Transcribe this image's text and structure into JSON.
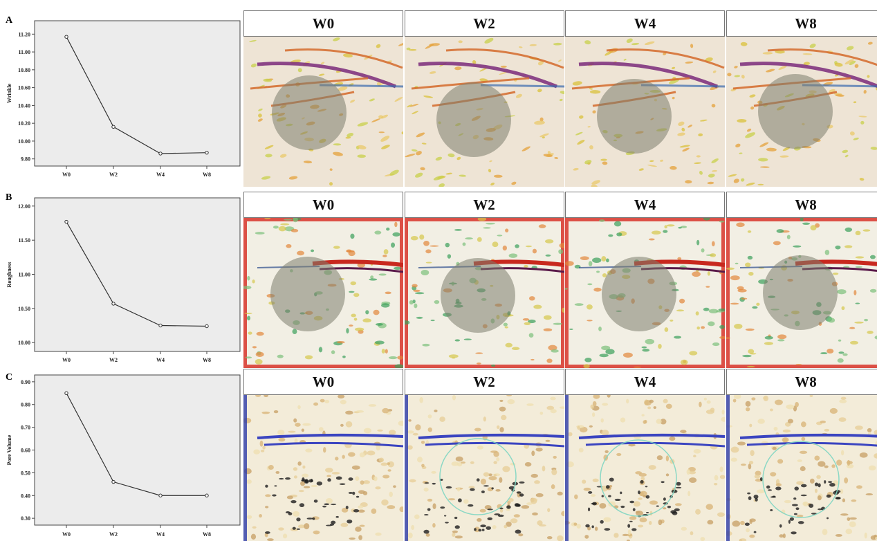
{
  "panels": [
    {
      "letter": "A",
      "chart_ylabel": "Wrinkle",
      "photo_style": "wrinkle",
      "photo_labels": [
        "W0",
        "W2",
        "W4",
        "W8"
      ]
    },
    {
      "letter": "B",
      "chart_ylabel": "Roughness",
      "photo_style": "roughness",
      "photo_labels": [
        "W0",
        "W2",
        "W4",
        "W8"
      ]
    },
    {
      "letter": "C",
      "chart_ylabel": "Pore Volume",
      "photo_style": "pore",
      "photo_labels": [
        "W0",
        "W2",
        "W4",
        "W8"
      ]
    }
  ],
  "chart_data": [
    {
      "type": "line",
      "categories": [
        "W0",
        "W2",
        "W4",
        "W8"
      ],
      "series": [
        {
          "values": [
            11.17,
            10.16,
            9.86,
            9.87
          ]
        }
      ],
      "title": "",
      "xlabel": "",
      "ylabel": "Wrinkle",
      "ylim": [
        9.72,
        11.35
      ],
      "yticks": [
        9.8,
        10.0,
        10.2,
        10.4,
        10.6,
        10.8,
        11.0,
        11.2
      ],
      "ytick_labels": [
        "9.80",
        "10.00",
        "10.20",
        "10.40",
        "10.60",
        "10.80",
        "11.00",
        "11.20"
      ],
      "grid": false,
      "background": "#ececec"
    },
    {
      "type": "line",
      "categories": [
        "W0",
        "W2",
        "W4",
        "W8"
      ],
      "series": [
        {
          "values": [
            11.77,
            10.57,
            10.25,
            10.24
          ]
        }
      ],
      "title": "",
      "xlabel": "",
      "ylabel": "Roughness",
      "ylim": [
        9.87,
        12.12
      ],
      "yticks": [
        10.0,
        10.5,
        11.0,
        11.5,
        12.0
      ],
      "ytick_labels": [
        "10.00",
        "10.50",
        "11.00",
        "11.50",
        "12.00"
      ],
      "grid": false,
      "background": "#ececec"
    },
    {
      "type": "line",
      "categories": [
        "W0",
        "W2",
        "W4",
        "W8"
      ],
      "series": [
        {
          "values": [
            0.85,
            0.46,
            0.4,
            0.4
          ]
        }
      ],
      "title": "",
      "xlabel": "",
      "ylabel": "Pore Volume",
      "ylim": [
        0.27,
        0.93
      ],
      "yticks": [
        0.3,
        0.4,
        0.5,
        0.6,
        0.7,
        0.8,
        0.9
      ],
      "ytick_labels": [
        "0.30",
        "0.40",
        "0.50",
        "0.60",
        "0.70",
        "0.80",
        "0.90"
      ],
      "grid": false,
      "background": "#ececec"
    }
  ],
  "colors": {
    "chart_background": "#ececec",
    "line": "#333333",
    "marker_fill": "#ffffff",
    "overlay_circle": "#7d7d6e"
  }
}
